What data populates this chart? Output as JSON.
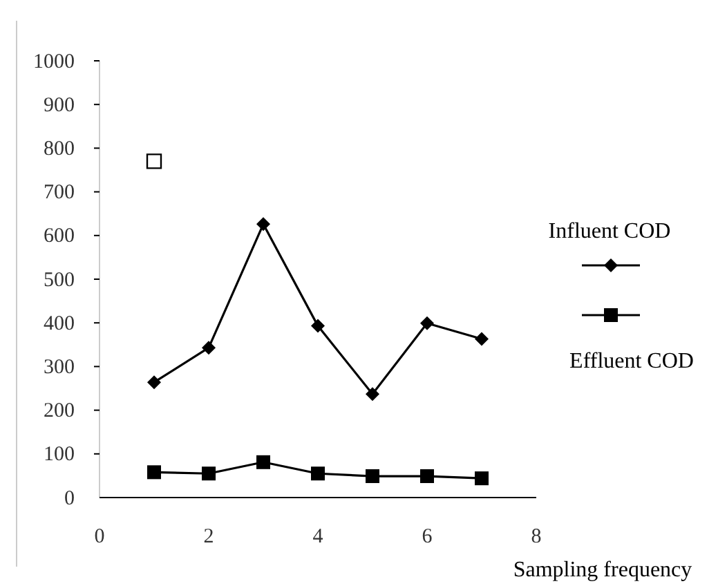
{
  "chart_data": {
    "type": "line",
    "xlabel": "Sampling frequency",
    "x": [
      1,
      2,
      3,
      4,
      5,
      6,
      7
    ],
    "xlim": [
      0,
      8
    ],
    "xticks": [
      0,
      2,
      4,
      6,
      8
    ],
    "ylim": [
      0,
      1000
    ],
    "yticks": [
      0,
      100,
      200,
      300,
      400,
      500,
      600,
      700,
      800,
      900,
      1000
    ],
    "grid": false,
    "legend": "right",
    "series": [
      {
        "name": "Influent COD",
        "color": "#000000",
        "marker": "diamond",
        "values": [
          264,
          343,
          626,
          393,
          237,
          399,
          363
        ]
      },
      {
        "name": "Effluent COD",
        "color": "#000000",
        "marker": "square",
        "values": [
          58,
          55,
          81,
          55,
          49,
          49,
          44
        ]
      },
      {
        "type": "scatter",
        "color": "#000000",
        "marker": "square",
        "x": [
          1
        ],
        "values": [
          770
        ]
      }
    ]
  }
}
